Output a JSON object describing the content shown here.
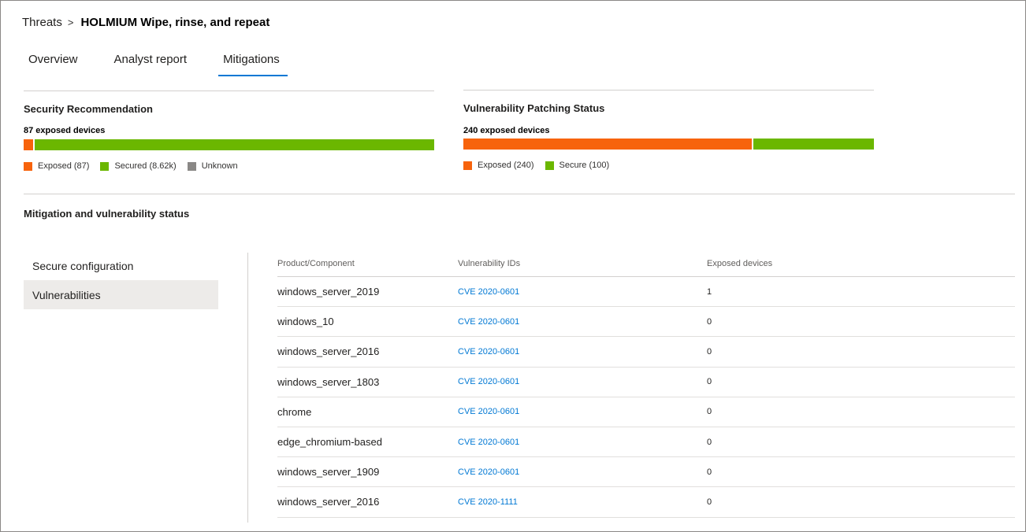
{
  "colors": {
    "exposed": "#f7630c",
    "secured": "#6bb700",
    "unknown": "#8a8886",
    "accent": "#0078d4"
  },
  "breadcrumb": {
    "parent": "Threats",
    "separator": ">",
    "current": "HOLMIUM Wipe, rinse, and repeat"
  },
  "tabs": [
    {
      "label": "Overview",
      "active": false
    },
    {
      "label": "Analyst report",
      "active": false
    },
    {
      "label": "Mitigations",
      "active": true
    }
  ],
  "security_recommendation": {
    "title": "Security Recommendation",
    "subtitle": "87 exposed devices",
    "bar": {
      "exposed": 87,
      "secured": 8620,
      "unknown": 0
    },
    "legend": [
      "Exposed (87)",
      "Secured (8.62k)",
      "Unknown"
    ]
  },
  "vulnerability_patching": {
    "title": "Vulnerability Patching Status",
    "subtitle": "240 exposed devices",
    "bar": {
      "exposed": 240,
      "secure": 100
    },
    "legend": [
      "Exposed (240)",
      "Secure (100)"
    ]
  },
  "mitigation": {
    "title": "Mitigation and vulnerability status",
    "nav": [
      {
        "label": "Secure configuration",
        "selected": false
      },
      {
        "label": "Vulnerabilities",
        "selected": true
      }
    ],
    "columns": [
      "Product/Component",
      "Vulnerability IDs",
      "Exposed devices"
    ],
    "rows": [
      {
        "product": "windows_server_2019",
        "cve": "CVE 2020-0601",
        "exposed": "1"
      },
      {
        "product": "windows_10",
        "cve": "CVE 2020-0601",
        "exposed": "0"
      },
      {
        "product": "windows_server_2016",
        "cve": "CVE 2020-0601",
        "exposed": "0"
      },
      {
        "product": "windows_server_1803",
        "cve": "CVE 2020-0601",
        "exposed": "0"
      },
      {
        "product": "chrome",
        "cve": "CVE 2020-0601",
        "exposed": "0"
      },
      {
        "product": "edge_chromium-based",
        "cve": "CVE 2020-0601",
        "exposed": "0"
      },
      {
        "product": "windows_server_1909",
        "cve": "CVE 2020-0601",
        "exposed": "0"
      },
      {
        "product": "windows_server_2016",
        "cve": "CVE 2020-1111",
        "exposed": "0"
      }
    ]
  }
}
